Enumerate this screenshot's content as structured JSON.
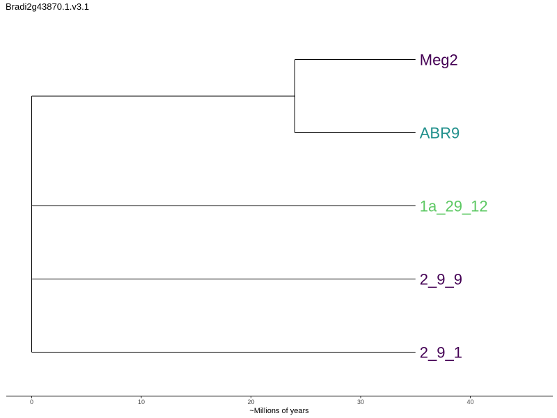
{
  "chart_data": {
    "type": "dendrogram",
    "title": "Bradi2g43870.1.v3.1",
    "xlabel": "~Millions of years",
    "xlim": [
      0,
      40
    ],
    "xticks": [
      "0",
      "10",
      "20",
      "30",
      "40"
    ],
    "tip_x": 35,
    "tips": [
      {
        "name": "Meg2",
        "color": "#440154"
      },
      {
        "name": "ABR9",
        "color": "#21908C"
      },
      {
        "name": "1a_29_12",
        "color": "#5DC863"
      },
      {
        "name": "2_9_9",
        "color": "#440154"
      },
      {
        "name": "2_9_1",
        "color": "#440154"
      }
    ],
    "internal_nodes": [
      {
        "name": "node-meg2-abr9",
        "x": 24,
        "children": [
          "Meg2",
          "ABR9"
        ]
      },
      {
        "name": "root",
        "x": 0,
        "children": [
          "node-meg2-abr9",
          "1a_29_12",
          "2_9_9",
          "2_9_1"
        ]
      }
    ]
  }
}
